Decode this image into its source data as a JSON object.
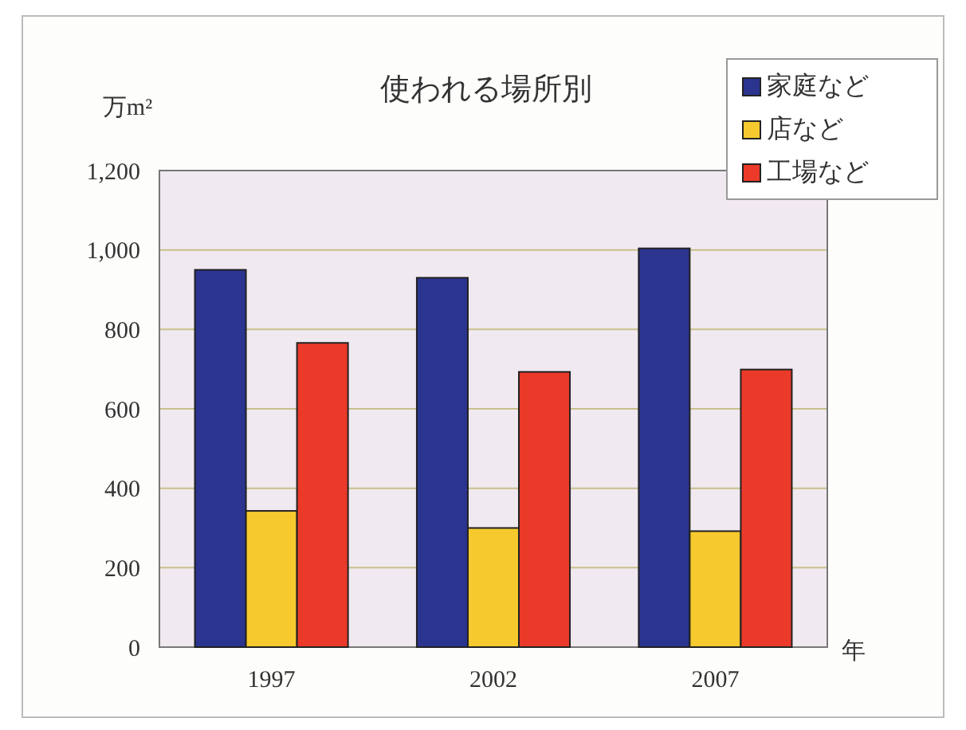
{
  "chart_data": {
    "type": "bar",
    "title": "使われる場所別",
    "ylabel": "万m²",
    "xlabel": "年",
    "categories": [
      "1997",
      "2002",
      "2007"
    ],
    "series": [
      {
        "name": "家庭など",
        "color": "#2b348f",
        "values": [
          950,
          930,
          1004
        ]
      },
      {
        "name": "店など",
        "color": "#f6c92e",
        "values": [
          343,
          300,
          292
        ]
      },
      {
        "name": "工場など",
        "color": "#eb3a2a",
        "values": [
          766,
          693,
          699
        ]
      }
    ],
    "ylim": [
      0,
      1200
    ],
    "yticks": [
      {
        "value": 0,
        "label": "0"
      },
      {
        "value": 200,
        "label": "200"
      },
      {
        "value": 400,
        "label": "400"
      },
      {
        "value": 600,
        "label": "600"
      },
      {
        "value": 800,
        "label": "800"
      },
      {
        "value": 1000,
        "label": "1,000"
      },
      {
        "value": 1200,
        "label": "1,200"
      }
    ],
    "grid": "y",
    "legend": "top right"
  }
}
